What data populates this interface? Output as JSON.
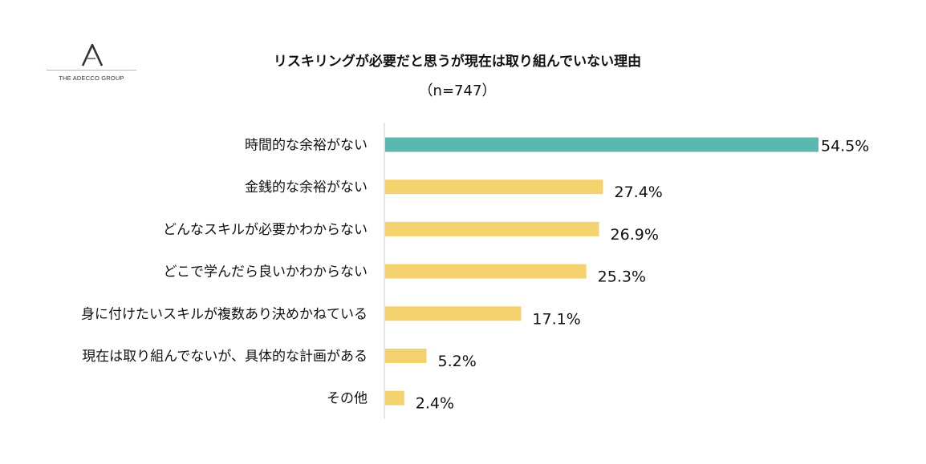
{
  "logo": {
    "text": "THE ADECCO GROUP",
    "icon": "adecco-a-logo",
    "accent_line_color": "#8ec9c0"
  },
  "chart_data": {
    "type": "bar",
    "orientation": "horizontal",
    "title": "リスキリングが必要だと思うが現在は取り組んでいない理由",
    "subtitle": "（n=747）",
    "categories": [
      "時間的な余裕がない",
      "金銭的な余裕がない",
      "どんなスキルが必要かわからない",
      "どこで学んだら良いかわからない",
      "身に付けたいスキルが複数あり決めかねている",
      "現在は取り組んでないが、具体的な計画がある",
      "その他"
    ],
    "values": [
      54.5,
      27.4,
      26.9,
      25.3,
      17.1,
      5.2,
      2.4
    ],
    "value_labels": [
      "54.5%",
      "27.4%",
      "26.9%",
      "25.3%",
      "17.1%",
      "5.2%",
      "2.4%"
    ],
    "unit": "%",
    "xlim": [
      0,
      60
    ],
    "grid": false,
    "legend": "none",
    "colors": {
      "highlight": "#5bb8b0",
      "default": "#f4d36e",
      "axis": "#cccccc"
    }
  }
}
